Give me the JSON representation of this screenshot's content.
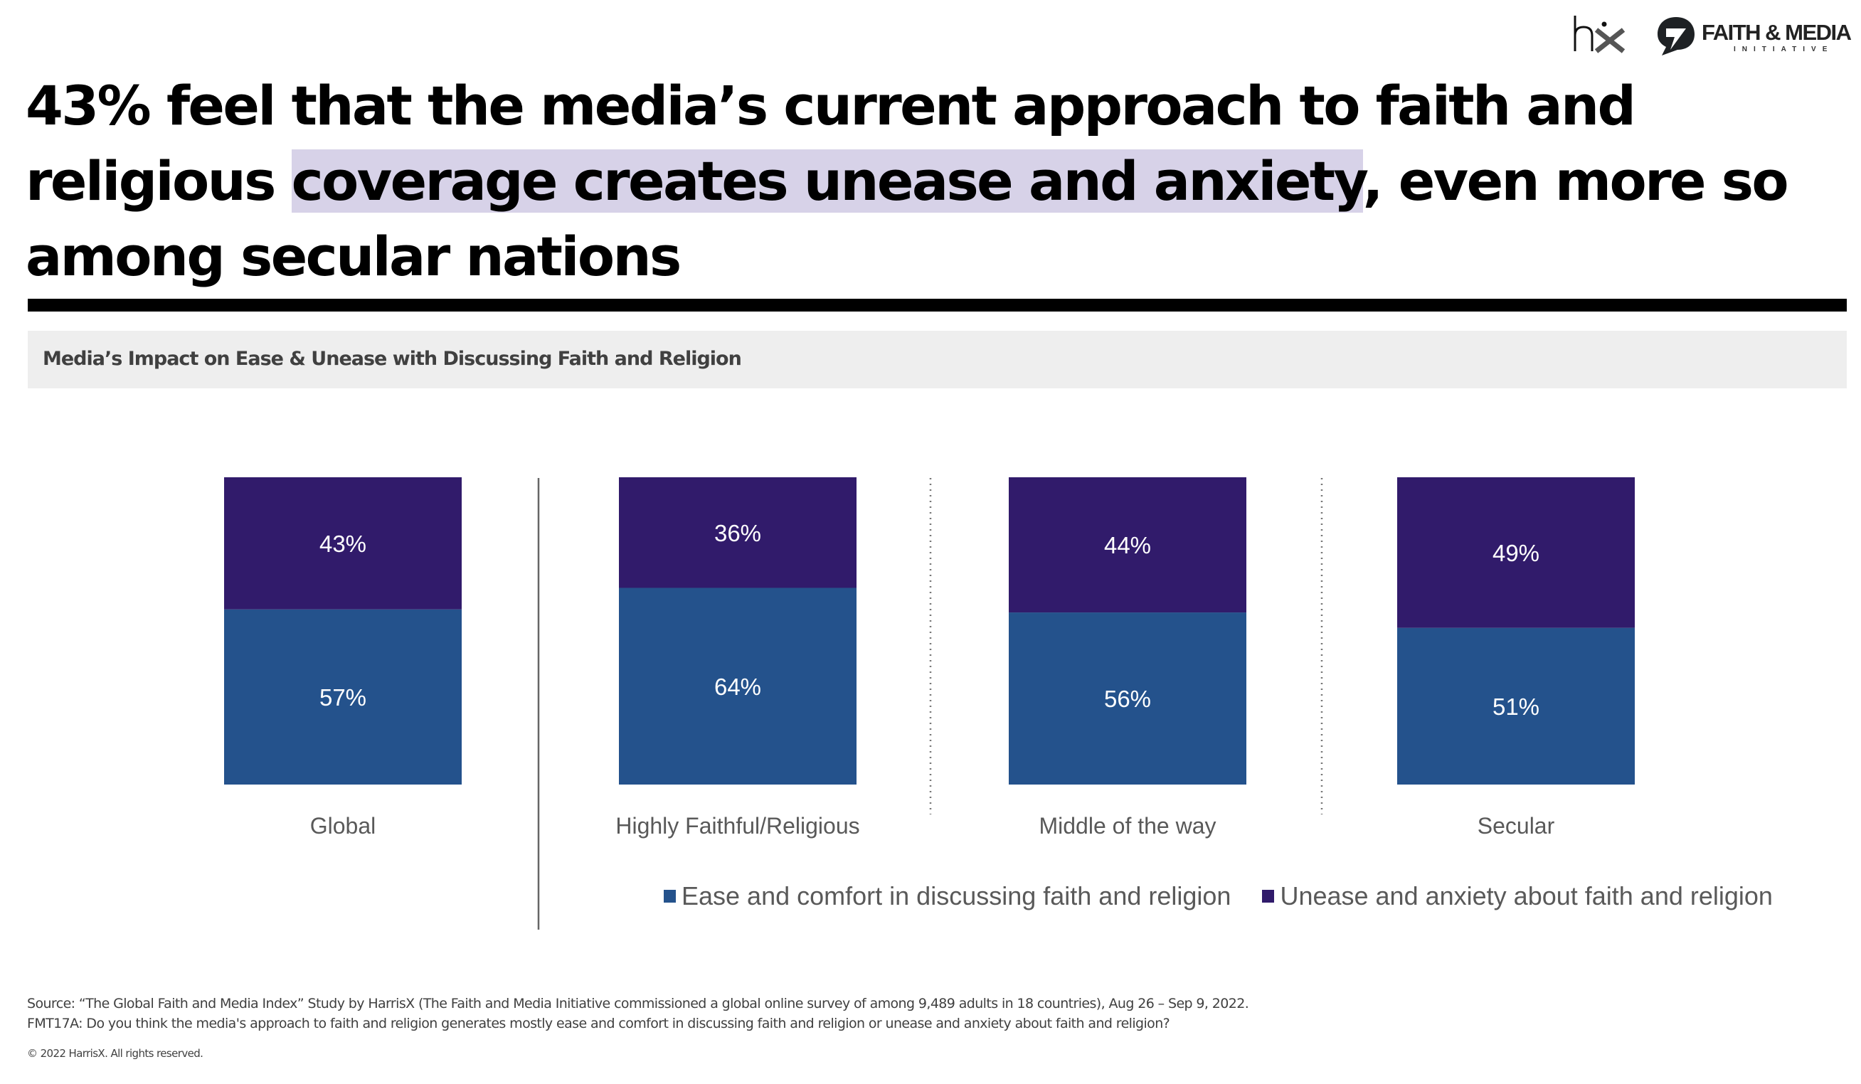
{
  "logos": {
    "hx": {
      "name": "hx",
      "icon": "harrisx-logo"
    },
    "faith_media": {
      "name": "FAITH & MEDIA",
      "subtitle": "INITIATIVE",
      "icon": "speech-bubble-logo"
    }
  },
  "headline": {
    "part1": "43% feel that the media’s current approach to faith and religious ",
    "highlight": "coverage creates unease and anxiety",
    "part2": ", even more so among secular nations"
  },
  "chart_header": "Media’s Impact on Ease & Unease with Discussing Faith and Religion",
  "colors": {
    "ease": "#24528c",
    "unease": "#311b6b",
    "highlight": "#d7d2e8"
  },
  "chart_data": {
    "type": "bar",
    "stacked": true,
    "orientation": "vertical",
    "title": "Media’s Impact on Ease & Unease with Discussing Faith and Religion",
    "xlabel": "",
    "ylabel": "",
    "ylim": [
      0,
      100
    ],
    "grid": false,
    "legend_position": "bottom",
    "categories": [
      "Global",
      "Highly Faithful/Religious",
      "Middle of the way",
      "Secular"
    ],
    "series": [
      {
        "name": "Ease and comfort in discussing faith and religion",
        "color": "#24528c",
        "values": [
          57,
          64,
          56,
          51
        ],
        "labels": [
          "57%",
          "64%",
          "56%",
          "51%"
        ]
      },
      {
        "name": "Unease and anxiety about faith and religion",
        "color": "#311b6b",
        "values": [
          43,
          36,
          44,
          49
        ],
        "labels": [
          "43%",
          "36%",
          "44%",
          "49%"
        ]
      }
    ],
    "separators": [
      "solid",
      "dotted",
      "dotted"
    ]
  },
  "legend": [
    {
      "label": "Ease and comfort in discussing faith and religion",
      "color": "#24528c"
    },
    {
      "label": "Unease and anxiety about faith and religion",
      "color": "#311b6b"
    }
  ],
  "footnotes": {
    "source": "Source: “The Global Faith and Media Index” Study by HarrisX (The Faith and Media Initiative commissioned a global online survey of among 9,489 adults in 18 countries), Aug 26 – Sep 9, 2022.",
    "question": "FMT17A: Do you think the media's approach to faith and religion generates mostly ease and comfort in discussing faith and religion or unease and anxiety about faith and religion?",
    "copyright": "© 2022 HarrisX. All rights reserved."
  }
}
